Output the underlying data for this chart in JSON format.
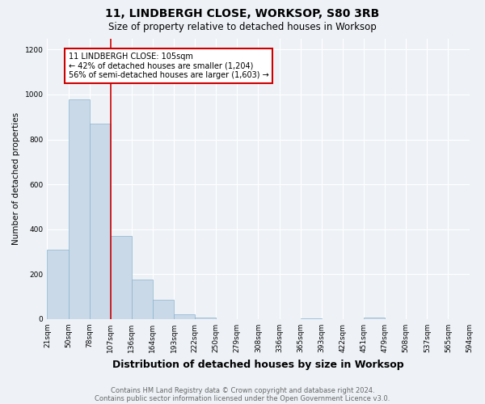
{
  "title": "11, LINDBERGH CLOSE, WORKSOP, S80 3RB",
  "subtitle": "Size of property relative to detached houses in Worksop",
  "xlabel": "Distribution of detached houses by size in Worksop",
  "ylabel": "Number of detached properties",
  "footnote1": "Contains HM Land Registry data © Crown copyright and database right 2024.",
  "footnote2": "Contains public sector information licensed under the Open Government Licence v3.0.",
  "bin_labels": [
    "21sqm",
    "50sqm",
    "78sqm",
    "107sqm",
    "136sqm",
    "164sqm",
    "193sqm",
    "222sqm",
    "250sqm",
    "279sqm",
    "308sqm",
    "336sqm",
    "365sqm",
    "393sqm",
    "422sqm",
    "451sqm",
    "479sqm",
    "508sqm",
    "537sqm",
    "565sqm",
    "594sqm"
  ],
  "bar_values": [
    310,
    980,
    870,
    370,
    175,
    85,
    20,
    8,
    0,
    0,
    0,
    0,
    5,
    0,
    0,
    8,
    0,
    0,
    0,
    0
  ],
  "bin_edges": [
    21,
    50,
    78,
    107,
    136,
    164,
    193,
    222,
    250,
    279,
    308,
    336,
    365,
    393,
    422,
    451,
    479,
    508,
    537,
    565,
    594
  ],
  "bar_color": "#c9d9e8",
  "bar_edgecolor": "#8ab4d0",
  "vline_x": 107,
  "vline_color": "#cc0000",
  "annotation_text": "11 LINDBERGH CLOSE: 105sqm\n← 42% of detached houses are smaller (1,204)\n56% of semi-detached houses are larger (1,603) →",
  "annotation_box_color": "#ffffff",
  "annotation_box_edgecolor": "#cc0000",
  "ylim": [
    0,
    1250
  ],
  "yticks": [
    0,
    200,
    400,
    600,
    800,
    1000,
    1200
  ],
  "bg_color": "#eef2f7",
  "grid_color": "#ffffff",
  "title_fontsize": 10,
  "subtitle_fontsize": 8.5,
  "xlabel_fontsize": 9,
  "ylabel_fontsize": 7.5,
  "tick_fontsize": 6.5,
  "footnote_fontsize": 6,
  "annot_fontsize": 7
}
